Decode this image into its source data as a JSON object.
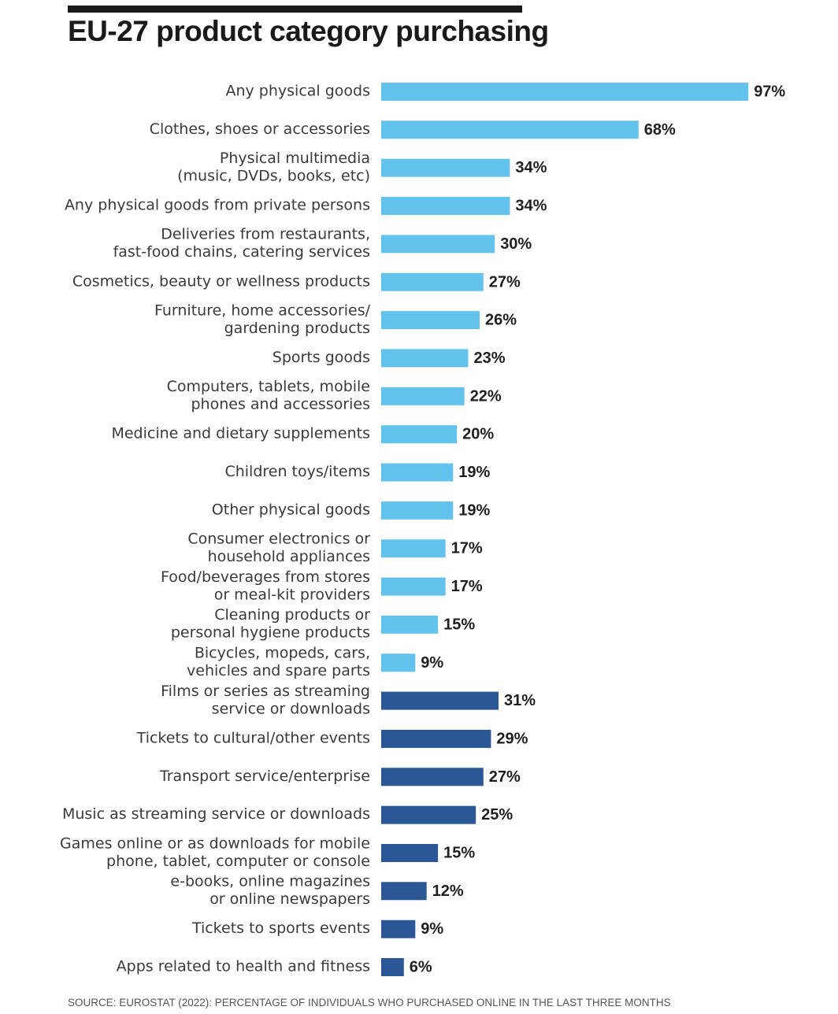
{
  "chart_data": {
    "type": "bar",
    "orientation": "horizontal",
    "title": "EU-27 product category purchasing",
    "source": "SOURCE:  EUROSTAT (2022): PERCENTAGE OF INDIVIDUALS WHO PURCHASED ONLINE IN THE LAST THREE MONTHS",
    "unit": "%",
    "xlim": [
      0,
      100
    ],
    "grid": false,
    "legend": "none",
    "colors": {
      "physical": "#63c3ec",
      "digital": "#2b5797"
    },
    "categories": [
      [
        "Any physical goods"
      ],
      [
        "Clothes, shoes or accessories"
      ],
      [
        "Physical multimedia",
        "(music, DVDs, books, etc)"
      ],
      [
        "Any physical goods from private persons"
      ],
      [
        "Deliveries from restaurants,",
        "fast-food chains, catering services"
      ],
      [
        "Cosmetics, beauty or wellness products"
      ],
      [
        "Furniture, home accessories/",
        "gardening products"
      ],
      [
        "Sports goods"
      ],
      [
        "Computers, tablets, mobile",
        "phones and accessories"
      ],
      [
        "Medicine and dietary supplements"
      ],
      [
        "Children toys/items"
      ],
      [
        "Other physical goods"
      ],
      [
        "Consumer electronics or",
        "household appliances"
      ],
      [
        "Food/beverages from stores",
        "or meal-kit providers"
      ],
      [
        "Cleaning products or",
        "personal hygiene products"
      ],
      [
        "Bicycles, mopeds, cars,",
        "vehicles and spare parts"
      ],
      [
        "Films or series as streaming",
        "service or downloads"
      ],
      [
        "Tickets to cultural/other events"
      ],
      [
        "Transport service/enterprise"
      ],
      [
        "Music as streaming service or downloads"
      ],
      [
        "Games online or as downloads for mobile",
        "phone, tablet, computer or console"
      ],
      [
        "e-books, online magazines",
        "or online newspapers"
      ],
      [
        "Tickets to sports events"
      ],
      [
        "Apps related to health and fitness"
      ]
    ],
    "values": [
      97,
      68,
      34,
      34,
      30,
      27,
      26,
      23,
      22,
      20,
      19,
      19,
      17,
      17,
      15,
      9,
      31,
      29,
      27,
      25,
      15,
      12,
      9,
      6
    ],
    "value_labels": [
      "97%",
      "68%",
      "34%",
      "34%",
      "30%",
      "27%",
      "26%",
      "23%",
      "22%",
      "20%",
      "19%",
      "19%",
      "17%",
      "17%",
      "15%",
      "9%",
      "31%",
      "29%",
      "27%",
      "25%",
      "15%",
      "12%",
      "9%",
      "6%"
    ],
    "groups": [
      "physical",
      "physical",
      "physical",
      "physical",
      "physical",
      "physical",
      "physical",
      "physical",
      "physical",
      "physical",
      "physical",
      "physical",
      "physical",
      "physical",
      "physical",
      "physical",
      "digital",
      "digital",
      "digital",
      "digital",
      "digital",
      "digital",
      "digital",
      "digital"
    ]
  }
}
